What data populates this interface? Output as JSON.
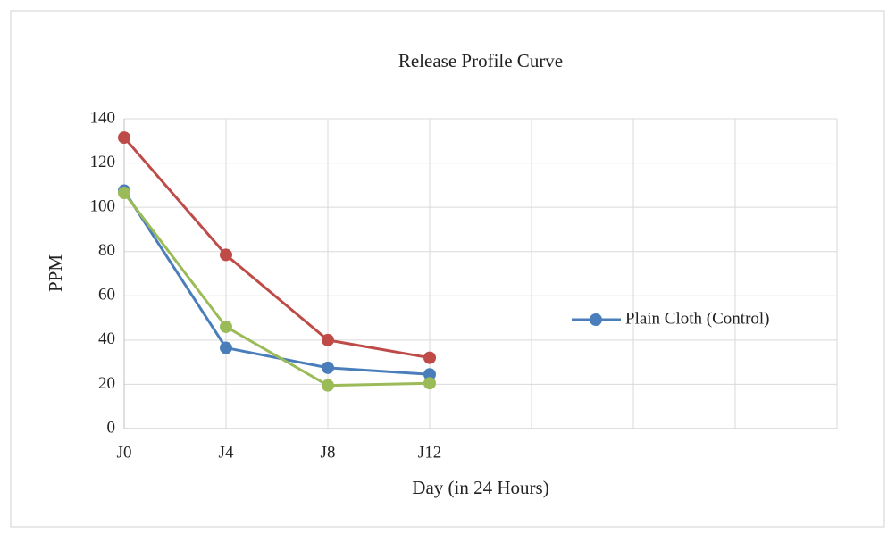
{
  "chart_data": {
    "type": "line",
    "title": "Release Profile Curve",
    "x_label": "Day (in 24 Hours)",
    "y_label": "PPM",
    "categories": [
      "J0",
      "J4",
      "J8",
      "J12",
      null,
      null,
      null,
      null
    ],
    "series": [
      {
        "name": "Plain Cloth (Control)",
        "color": "#4a7ebb",
        "values": [
          107.5,
          36.5,
          27.5,
          24.5,
          null,
          null,
          null,
          null
        ]
      },
      {
        "color": "#be4b48",
        "values": [
          131.5,
          78.5,
          40,
          32,
          null,
          null,
          null,
          null
        ]
      },
      {
        "color": "#9bbb59",
        "values": [
          106.5,
          46,
          19.5,
          20.5,
          null,
          null,
          null,
          null
        ]
      }
    ],
    "ylim": [
      0,
      140
    ],
    "yticks": [
      0,
      20,
      40,
      60,
      80,
      100,
      120,
      140
    ],
    "grid": true,
    "legend": "right"
  }
}
